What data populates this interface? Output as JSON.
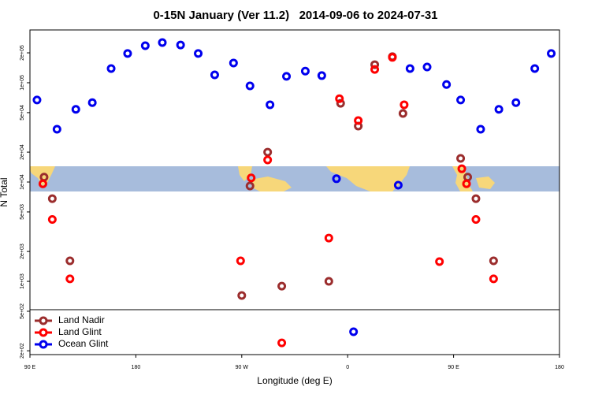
{
  "chart_data": {
    "type": "scatter",
    "title": "0-15N January (Ver 11.2)   2014-09-06 to 2024-07-31",
    "x_label": "Longitude (deg E)",
    "y_label": "N Total",
    "xlim": [
      90,
      540
    ],
    "ylim": [
      183,
      340000
    ],
    "log_y": true,
    "legend": "lower left",
    "xticks": [
      {
        "value": 90,
        "label": "90 E"
      },
      180,
      {
        "value": 270,
        "label": "90 W"
      },
      {
        "value": 360,
        "label": "0"
      },
      {
        "value": 450,
        "label": "90 E"
      },
      {
        "value": 540,
        "label": "180"
      }
    ],
    "yticks": [
      {
        "value": 200000,
        "label": "2e+05"
      },
      {
        "value": 100000,
        "label": "1e+05"
      },
      {
        "value": 50000,
        "label": "5e+04"
      },
      {
        "value": 20000,
        "label": "2e+04"
      },
      {
        "value": 10000,
        "label": "1e+04"
      },
      {
        "value": 5000,
        "label": "5e+03"
      },
      {
        "value": 2000,
        "label": "2e+03"
      },
      {
        "value": 1000,
        "label": "1e+03"
      },
      {
        "value": 500,
        "label": "5e+02"
      },
      {
        "value": 200,
        "label": "2e+02"
      }
    ],
    "series": [
      {
        "name": "Land Nadir",
        "color": "#9b2d2d",
        "x": [
          102,
          109,
          124,
          270,
          277,
          292,
          304,
          344,
          354,
          369,
          383,
          398,
          407,
          456,
          462,
          469,
          484
        ],
        "values": [
          11200,
          6800,
          1610,
          720,
          9130,
          20000,
          895,
          1000,
          62000,
          36600,
          152000,
          183000,
          49000,
          17300,
          11200,
          6800,
          1610
        ]
      },
      {
        "name": "Land Glint",
        "color": "#ff0000",
        "x": [
          101,
          109,
          124,
          269,
          278,
          292,
          304,
          344,
          353,
          369,
          383,
          398,
          408,
          438,
          457,
          461,
          469,
          484
        ],
        "values": [
          9600,
          4200,
          1060,
          1610,
          11000,
          16700,
          240,
          2730,
          69000,
          41600,
          136000,
          180000,
          60000,
          1580,
          13600,
          9600,
          4200,
          1060
        ]
      },
      {
        "name": "Ocean Glint",
        "color": "#0000ee",
        "x": [
          96,
          113,
          129,
          143,
          159,
          173,
          188,
          202.5,
          218,
          233,
          247,
          263,
          277,
          294,
          308,
          324,
          338,
          350.5,
          365,
          403,
          413,
          427.5,
          444,
          456,
          473,
          488.5,
          503,
          519,
          533
        ],
        "values": [
          67000,
          34000,
          54000,
          63000,
          139000,
          197000,
          236000,
          254000,
          240000,
          197000,
          120000,
          158000,
          93000,
          60000,
          116000,
          131000,
          118000,
          10800,
          311,
          9300,
          139000,
          144000,
          96000,
          67000,
          34000,
          54000,
          63000,
          139000,
          197000
        ]
      }
    ]
  }
}
